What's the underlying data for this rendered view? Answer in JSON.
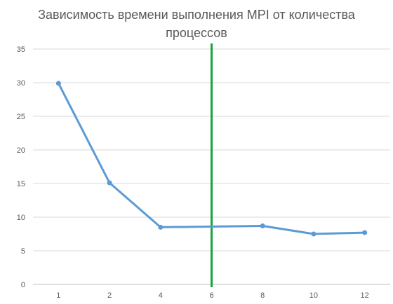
{
  "chart_data": {
    "type": "line",
    "title_lines": [
      "Зависимость времени выполнения MPI от количества",
      "процессов"
    ],
    "xlabel": "",
    "ylabel": "",
    "categories": [
      "1",
      "2",
      "4",
      "6",
      "8",
      "10",
      "12"
    ],
    "series": [
      {
        "values": [
          29.9,
          15.1,
          8.5,
          8.0,
          8.7,
          7.5,
          7.7
        ],
        "color": "#5b9bd5",
        "skip_category": "6"
      }
    ],
    "ylim": [
      0,
      35
    ],
    "yticks": [
      0,
      5,
      10,
      15,
      20,
      25,
      30,
      35
    ],
    "grid": true,
    "legend": "none",
    "vertical_marker": {
      "category": "6",
      "color": "#1aa33a"
    }
  },
  "colors": {
    "grid": "#d9d9d9",
    "axis": "#bfbfbf",
    "text": "#595959"
  }
}
